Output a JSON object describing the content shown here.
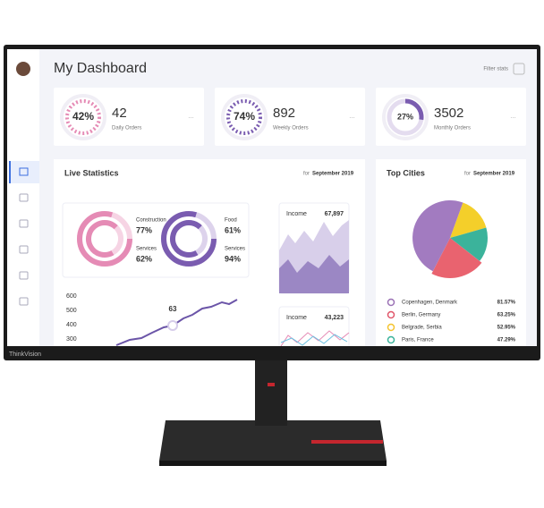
{
  "header": {
    "title": "My Dashboard",
    "filter": "Filter stats"
  },
  "stats": [
    {
      "percent": "42%",
      "value": "42",
      "label": "Daily Orders"
    },
    {
      "percent": "74%",
      "value": "892",
      "label": "Weekly Orders"
    },
    {
      "percent": "27%",
      "value": "3502",
      "label": "Monthly Orders"
    }
  ],
  "live_statistics": {
    "title": "Live Statistics",
    "period_prefix": "for",
    "period": "September 2019",
    "donuts": [
      {
        "name": "Construction",
        "value": "77%"
      },
      {
        "name": "Services",
        "value": "62%"
      },
      {
        "name": "Food",
        "value": "61%"
      },
      {
        "name": "Services",
        "value": "94%"
      }
    ],
    "line_chart": {
      "yticks": [
        "600",
        "500",
        "400",
        "300"
      ],
      "highlight": "63"
    },
    "income": [
      {
        "label": "Income",
        "value": "67,897"
      },
      {
        "label": "Income",
        "value": "43,223"
      }
    ]
  },
  "top_cities": {
    "title": "Top Cities",
    "period_prefix": "for",
    "period": "September 2019",
    "cities": [
      {
        "name": "Copenhagen, Denmark",
        "value": "81.57%"
      },
      {
        "name": "Berlin, Germany",
        "value": "63.25%"
      },
      {
        "name": "Belgrade, Serbia",
        "value": "52.95%"
      },
      {
        "name": "Paris, France",
        "value": "47.29%"
      }
    ]
  },
  "brand": "ThinkVision"
}
